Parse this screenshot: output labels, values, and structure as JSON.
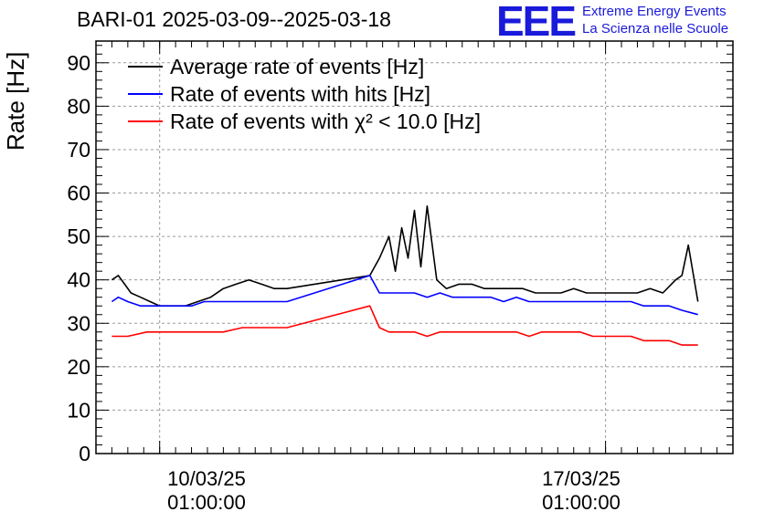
{
  "title": "BARI-01 2025-03-09--2025-03-18",
  "logo": {
    "mark": "EEE",
    "line1": "Extreme Energy Events",
    "line2": "La Scienza nelle Scuole",
    "color": "#1a1adb"
  },
  "chart_data": {
    "type": "line",
    "ylabel": "Rate [Hz]",
    "ylim": [
      0,
      95
    ],
    "yticks": [
      "0",
      "10",
      "20",
      "30",
      "40",
      "50",
      "60",
      "70",
      "80",
      "90"
    ],
    "xlim_days": [
      0,
      10
    ],
    "xticks": [
      {
        "day": 1.0,
        "label1": "10/03/25",
        "label2": "01:00:00"
      },
      {
        "day": 8.0,
        "label1": "17/03/25",
        "label2": "01:00:00"
      }
    ],
    "grid": true,
    "legend_position": "top-left",
    "series": [
      {
        "name": "Average rate of events [Hz]",
        "color": "#000000",
        "x": [
          0.25,
          0.35,
          0.45,
          0.55,
          0.7,
          0.85,
          1.0,
          1.2,
          1.4,
          1.6,
          1.8,
          2.0,
          2.2,
          2.4,
          2.6,
          2.8,
          3.0,
          4.3,
          4.45,
          4.6,
          4.7,
          4.8,
          4.9,
          5.0,
          5.1,
          5.2,
          5.35,
          5.5,
          5.7,
          5.9,
          6.1,
          6.3,
          6.5,
          6.7,
          6.9,
          7.1,
          7.3,
          7.5,
          7.7,
          7.9,
          8.1,
          8.3,
          8.5,
          8.7,
          8.9,
          9.1,
          9.2,
          9.3,
          9.45
        ],
        "y": [
          40,
          41,
          39,
          37,
          36,
          35,
          34,
          34,
          34,
          35,
          36,
          38,
          39,
          40,
          39,
          38,
          38,
          41,
          45,
          50,
          42,
          52,
          45,
          56,
          43,
          57,
          40,
          38,
          39,
          39,
          38,
          38,
          38,
          38,
          37,
          37,
          37,
          38,
          37,
          37,
          37,
          37,
          37,
          38,
          37,
          40,
          41,
          48,
          35
        ]
      },
      {
        "name": "Rate of events with hits [Hz]",
        "color": "#0000ff",
        "x": [
          0.25,
          0.35,
          0.5,
          0.7,
          0.9,
          1.1,
          1.3,
          1.5,
          1.7,
          1.9,
          2.1,
          2.3,
          2.5,
          2.7,
          2.9,
          3.0,
          4.3,
          4.45,
          4.6,
          4.8,
          5.0,
          5.2,
          5.4,
          5.6,
          5.8,
          6.0,
          6.2,
          6.4,
          6.6,
          6.8,
          7.0,
          7.2,
          7.4,
          7.6,
          7.8,
          8.0,
          8.2,
          8.4,
          8.6,
          8.8,
          9.0,
          9.2,
          9.45
        ],
        "y": [
          35,
          36,
          35,
          34,
          34,
          34,
          34,
          34,
          35,
          35,
          35,
          35,
          35,
          35,
          35,
          35,
          41,
          37,
          37,
          37,
          37,
          36,
          37,
          36,
          36,
          36,
          36,
          35,
          36,
          35,
          35,
          35,
          35,
          35,
          35,
          35,
          35,
          35,
          34,
          34,
          34,
          33,
          32
        ]
      },
      {
        "name": "Rate of events with χ² < 10.0 [Hz]",
        "color": "#ff0000",
        "x": [
          0.25,
          0.5,
          0.8,
          1.1,
          1.4,
          1.7,
          2.0,
          2.3,
          2.6,
          2.9,
          3.0,
          4.3,
          4.45,
          4.6,
          4.8,
          5.0,
          5.2,
          5.4,
          5.6,
          5.8,
          6.0,
          6.2,
          6.4,
          6.6,
          6.8,
          7.0,
          7.2,
          7.4,
          7.6,
          7.8,
          8.0,
          8.2,
          8.4,
          8.6,
          8.8,
          9.0,
          9.2,
          9.45
        ],
        "y": [
          27,
          27,
          28,
          28,
          28,
          28,
          28,
          29,
          29,
          29,
          29,
          34,
          29,
          28,
          28,
          28,
          27,
          28,
          28,
          28,
          28,
          28,
          28,
          28,
          27,
          28,
          28,
          28,
          28,
          27,
          27,
          27,
          27,
          26,
          26,
          26,
          25,
          25
        ]
      }
    ]
  }
}
